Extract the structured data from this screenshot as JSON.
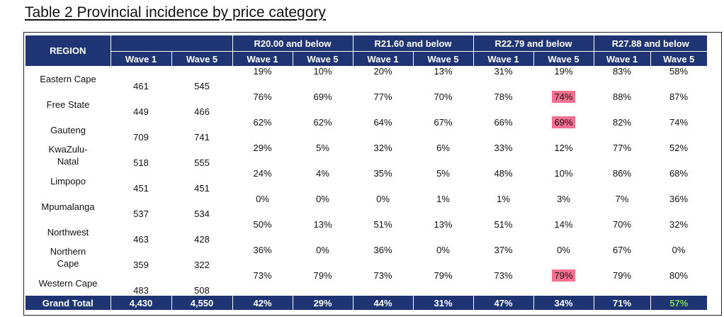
{
  "title": "Table 2 Provincial incidence by price category",
  "header": {
    "region": "REGION",
    "groups": [
      "R20.00 and below",
      "R21.60 and below",
      "R22.79 and below",
      "R27.88 and below"
    ],
    "wave1": "Wave 1",
    "wave5": "Wave 5",
    "highlight_color": "#ff4f8b",
    "header_bg": "#1f3573"
  },
  "rows": [
    {
      "region": [
        "Eastern Cape"
      ],
      "pop": [
        "461",
        "545"
      ],
      "pct": [
        "19%",
        "10%",
        "20%",
        "13%",
        "31%",
        "19%",
        "83%",
        "58%"
      ]
    },
    {
      "region": [
        "Free State"
      ],
      "pop": [
        "449",
        "466"
      ],
      "pct": [
        "76%",
        "69%",
        "77%",
        "70%",
        "78%",
        "74%",
        "88%",
        "87%"
      ]
    },
    {
      "region": [
        "Gauteng"
      ],
      "pop": [
        "709",
        "741"
      ],
      "pct": [
        "62%",
        "62%",
        "64%",
        "67%",
        "66%",
        "69%",
        "82%",
        "74%"
      ]
    },
    {
      "region": [
        "KwaZulu-",
        "Natal"
      ],
      "pop": [
        "518",
        "555"
      ],
      "pct": [
        "29%",
        "5%",
        "32%",
        "6%",
        "33%",
        "12%",
        "77%",
        "52%"
      ]
    },
    {
      "region": [
        "Limpopo"
      ],
      "pop": [
        "451",
        "451"
      ],
      "pct": [
        "24%",
        "4%",
        "35%",
        "5%",
        "48%",
        "10%",
        "86%",
        "68%"
      ]
    },
    {
      "region": [
        "Mpumalanga"
      ],
      "pop": [
        "537",
        "534"
      ],
      "pct": [
        "0%",
        "0%",
        "0%",
        "1%",
        "1%",
        "3%",
        "7%",
        "36%"
      ]
    },
    {
      "region": [
        "Northwest"
      ],
      "pop": [
        "463",
        "428"
      ],
      "pct": [
        "50%",
        "13%",
        "51%",
        "13%",
        "51%",
        "14%",
        "70%",
        "32%"
      ]
    },
    {
      "region": [
        "Northern",
        "Cape"
      ],
      "pop": [
        "359",
        "322"
      ],
      "pct": [
        "36%",
        "0%",
        "36%",
        "0%",
        "37%",
        "0%",
        "67%",
        "0%"
      ]
    },
    {
      "region": [
        "Western Cape"
      ],
      "pop": [
        "483",
        "508"
      ],
      "pct": [
        "73%",
        "79%",
        "73%",
        "79%",
        "73%",
        "79%",
        "79%",
        "80%"
      ]
    }
  ],
  "highlighted_cells": [
    [
      1,
      5
    ],
    [
      2,
      5
    ],
    [
      8,
      5
    ]
  ],
  "highlight_fill": "#f4708f",
  "total": {
    "label": "Grand Total",
    "pop": [
      "4,430",
      "4,550"
    ],
    "pct": [
      "42%",
      "29%",
      "44%",
      "31%",
      "47%",
      "34%",
      "71%",
      "57%"
    ],
    "green_index": 7,
    "green_color": "#7dd856"
  }
}
